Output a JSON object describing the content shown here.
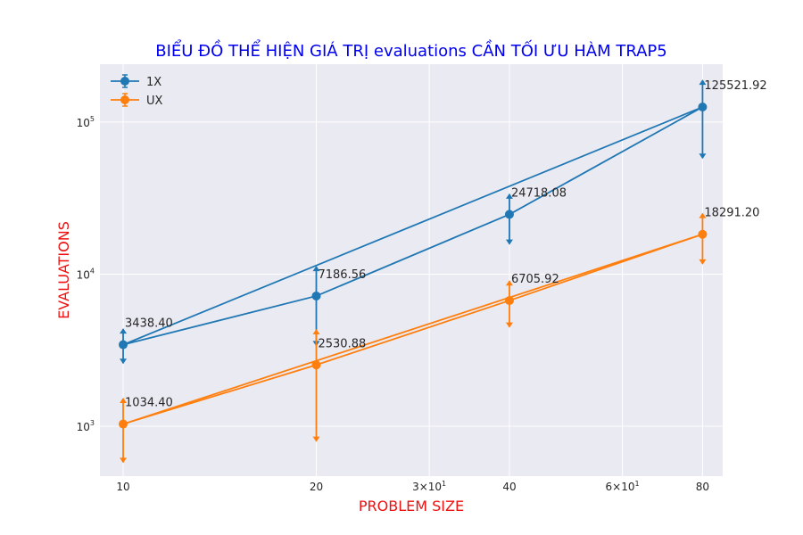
{
  "chart_data": {
    "type": "line",
    "title": "BIỂU ĐỒ THỂ HIỆN GIÁ TRỊ evaluations CẦN TỐI ƯU HÀM TRAP5",
    "xlabel": "PROBLEM SIZE",
    "ylabel": "EVALUATIONS",
    "x_scale": "log",
    "y_scale": "log",
    "xlim": [
      9.2,
      86
    ],
    "ylim": [
      470,
      240000
    ],
    "x_ticks": [
      {
        "value": 10,
        "label": "10"
      },
      {
        "value": 20,
        "label": "20"
      },
      {
        "value": 30,
        "label": "3×10",
        "sup": "1"
      },
      {
        "value": 40,
        "label": "40"
      },
      {
        "value": 60,
        "label": "6×10",
        "sup": "1"
      },
      {
        "value": 80,
        "label": "80"
      }
    ],
    "y_ticks": [
      {
        "value": 1000,
        "label": "10",
        "sup": "3"
      },
      {
        "value": 10000,
        "label": "10",
        "sup": "4"
      },
      {
        "value": 100000,
        "label": "10",
        "sup": "5"
      }
    ],
    "grid": true,
    "legend": "top-left",
    "series": [
      {
        "name": "1X",
        "color": "#1f77b4",
        "x": [
          10,
          20,
          40,
          80
        ],
        "y": [
          3438.4,
          7186.56,
          24718.08,
          125521.92
        ],
        "err_low": [
          2600,
          3400,
          15800,
          58000
        ],
        "err_high": [
          4350,
          11200,
          33500,
          188000
        ],
        "point_labels": [
          "3438.40",
          "7186.56",
          "24718.08",
          "125521.92"
        ]
      },
      {
        "name": "UX",
        "color": "#ff7f0e",
        "x": [
          10,
          20,
          40,
          80
        ],
        "y": [
          1034.4,
          2530.88,
          6705.92,
          18291.2
        ],
        "err_low": [
          580,
          800,
          4500,
          11700
        ],
        "err_high": [
          1520,
          4300,
          9000,
          25000
        ],
        "point_labels": [
          "1034.40",
          "2530.88",
          "6705.92",
          "18291.20"
        ]
      }
    ],
    "fit_lines": [
      {
        "color": "#1f77b4",
        "from": [
          10,
          3438.4
        ],
        "to": [
          80,
          125521.92
        ]
      },
      {
        "color": "#ff7f0e",
        "from": [
          10,
          1034.4
        ],
        "to": [
          80,
          18291.2
        ]
      }
    ],
    "colors": {
      "title": "#0000ee",
      "axis_label": "#ee1111",
      "plot_bg": "#eaeaf2",
      "grid": "#ffffff"
    }
  }
}
